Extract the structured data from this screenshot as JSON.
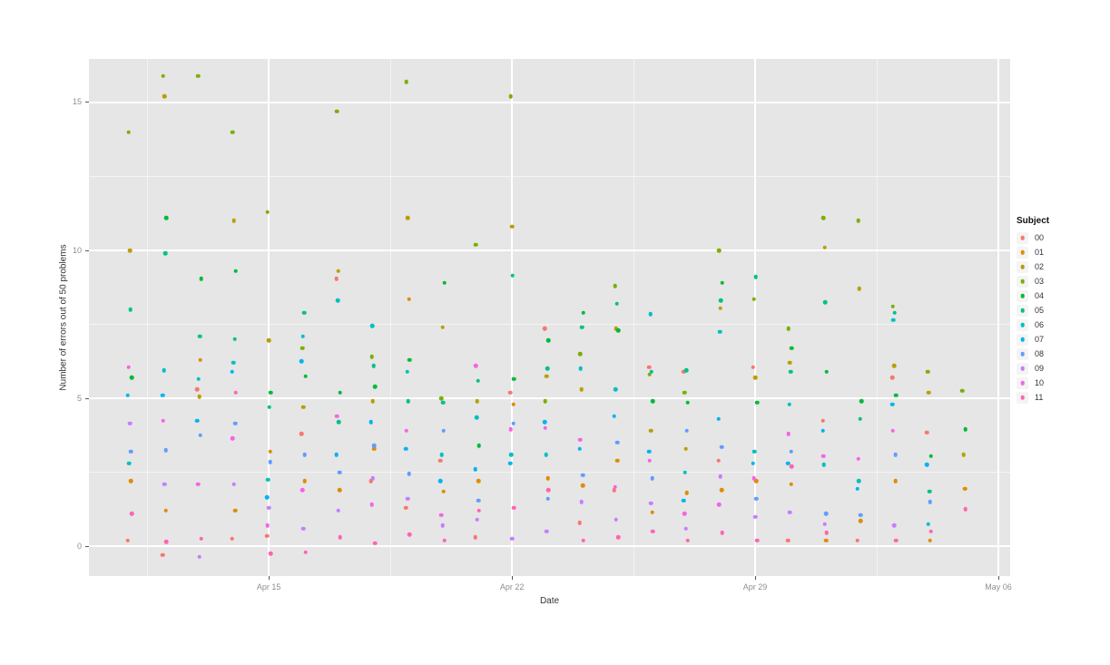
{
  "chart_data": {
    "type": "scatter",
    "title": "",
    "xlabel": "Date",
    "ylabel": "Number of errors out of 50 problems",
    "legend_title": "Subject",
    "legend_position": "right",
    "panel_background": "#e6e6e6",
    "grid_major_color": "#ffffff",
    "grid_minor_color": "rgba(255,255,255,0.55)",
    "tick_label_color": "#8e8e8e",
    "x_tick_labels": [
      "Apr 15",
      "Apr 22",
      "Apr 29",
      "May 06"
    ],
    "x_tick_days": [
      4,
      11,
      18,
      25
    ],
    "x_minor_days": [
      0.5,
      7.5,
      14.5,
      21.5
    ],
    "y_ticks": [
      0,
      5,
      10,
      15
    ],
    "y_minor_ticks": [
      2.5,
      7.5,
      12.5
    ],
    "xlim_days": [
      -1.175,
      25.34
    ],
    "ylim": [
      -1.01,
      16.47
    ],
    "grid": true,
    "dates": [
      "Apr 11",
      "Apr 12",
      "Apr 13",
      "Apr 14",
      "Apr 15",
      "Apr 16",
      "Apr 17",
      "Apr 18",
      "Apr 19",
      "Apr 20",
      "Apr 21",
      "Apr 22",
      "Apr 23",
      "Apr 24",
      "Apr 25",
      "Apr 26",
      "Apr 27",
      "Apr 28",
      "Apr 29",
      "Apr 30",
      "May 01",
      "May 02",
      "May 03",
      "May 04",
      "May 05"
    ],
    "series": [
      {
        "name": "00",
        "color": "#F8766D",
        "values": [
          0.2,
          -0.3,
          5.3,
          0.25,
          0.35,
          3.8,
          9.05,
          2.2,
          1.3,
          2.9,
          0.3,
          5.2,
          7.35,
          0.8,
          1.9,
          6.05,
          5.9,
          2.9,
          6.05,
          0.2,
          4.25,
          0.2,
          5.7,
          3.85,
          null
        ]
      },
      {
        "name": "01",
        "color": "#DE8C00",
        "values": [
          2.2,
          1.2,
          6.3,
          1.2,
          3.2,
          2.2,
          1.9,
          3.3,
          8.35,
          1.85,
          2.2,
          4.8,
          2.3,
          2.05,
          2.9,
          1.15,
          1.8,
          1.9,
          2.2,
          2.1,
          0.2,
          0.85,
          2.2,
          0.2,
          1.95
        ]
      },
      {
        "name": "02",
        "color": "#B79F00",
        "values": [
          10.0,
          15.2,
          5.05,
          11.0,
          6.95,
          4.7,
          9.3,
          4.9,
          11.1,
          7.4,
          4.9,
          10.8,
          5.75,
          5.3,
          7.35,
          3.9,
          3.3,
          8.05,
          5.7,
          6.2,
          10.1,
          8.7,
          6.1,
          5.2,
          3.1
        ]
      },
      {
        "name": "03",
        "color": "#7CAE00",
        "values": [
          14.0,
          15.9,
          15.9,
          14.0,
          11.3,
          6.7,
          14.7,
          6.4,
          15.7,
          5.0,
          10.2,
          15.2,
          4.9,
          6.5,
          8.8,
          5.8,
          5.2,
          10.0,
          8.35,
          7.35,
          11.1,
          11.0,
          8.1,
          5.9,
          5.25
        ]
      },
      {
        "name": "04",
        "color": "#00BA38",
        "values": [
          5.7,
          11.1,
          9.05,
          9.3,
          5.2,
          5.75,
          5.2,
          5.4,
          6.3,
          8.9,
          3.4,
          5.65,
          6.95,
          7.9,
          7.3,
          4.9,
          4.85,
          8.9,
          4.85,
          6.7,
          5.9,
          4.9,
          5.1,
          3.05,
          3.95
        ]
      },
      {
        "name": "05",
        "color": "#00C08B",
        "values": [
          8.0,
          9.9,
          7.1,
          7.0,
          4.7,
          7.9,
          4.2,
          6.1,
          4.9,
          4.85,
          5.6,
          9.15,
          6.0,
          7.4,
          8.2,
          5.9,
          5.95,
          8.3,
          9.1,
          5.9,
          8.25,
          4.3,
          7.9,
          1.85,
          null
        ]
      },
      {
        "name": "06",
        "color": "#00BFC4",
        "values": [
          2.8,
          5.95,
          5.65,
          6.2,
          2.25,
          7.1,
          8.3,
          7.45,
          5.9,
          3.1,
          4.35,
          3.1,
          3.1,
          6.0,
          5.3,
          7.85,
          2.5,
          7.25,
          3.2,
          4.8,
          2.75,
          2.2,
          7.65,
          0.75,
          null
        ]
      },
      {
        "name": "07",
        "color": "#00B4F0",
        "values": [
          5.1,
          5.1,
          4.25,
          5.9,
          1.65,
          6.25,
          3.1,
          4.2,
          3.3,
          2.2,
          2.6,
          2.8,
          4.2,
          3.3,
          4.4,
          3.2,
          1.55,
          4.3,
          2.8,
          2.8,
          3.9,
          1.95,
          4.8,
          2.75,
          null
        ]
      },
      {
        "name": "08",
        "color": "#619CFF",
        "values": [
          3.2,
          3.25,
          3.75,
          4.15,
          2.85,
          3.1,
          2.5,
          3.4,
          2.45,
          3.9,
          1.55,
          4.15,
          1.6,
          2.4,
          3.5,
          2.3,
          3.9,
          3.35,
          1.6,
          3.2,
          1.1,
          1.05,
          3.1,
          1.5,
          null
        ]
      },
      {
        "name": "09",
        "color": "#C77CFF",
        "values": [
          4.15,
          2.1,
          -0.35,
          2.1,
          1.3,
          0.6,
          1.2,
          2.3,
          1.6,
          0.7,
          0.9,
          0.25,
          0.5,
          1.5,
          0.9,
          1.45,
          0.6,
          2.35,
          1.0,
          1.15,
          0.75,
          null,
          0.7,
          null,
          null
        ]
      },
      {
        "name": "10",
        "color": "#F564E3",
        "values": [
          6.05,
          4.25,
          2.1,
          3.65,
          0.7,
          1.9,
          4.4,
          1.4,
          3.9,
          1.05,
          6.1,
          3.95,
          4.0,
          3.6,
          2.0,
          2.9,
          1.1,
          1.4,
          2.3,
          3.8,
          3.05,
          2.95,
          3.9,
          null,
          null
        ]
      },
      {
        "name": "11",
        "color": "#FF64B0",
        "values": [
          1.1,
          0.15,
          0.25,
          5.2,
          -0.25,
          -0.2,
          0.3,
          0.1,
          0.4,
          0.2,
          1.2,
          1.3,
          1.9,
          0.2,
          0.3,
          0.5,
          0.2,
          0.45,
          0.2,
          2.7,
          0.45,
          null,
          0.2,
          0.5,
          1.25
        ]
      }
    ]
  }
}
